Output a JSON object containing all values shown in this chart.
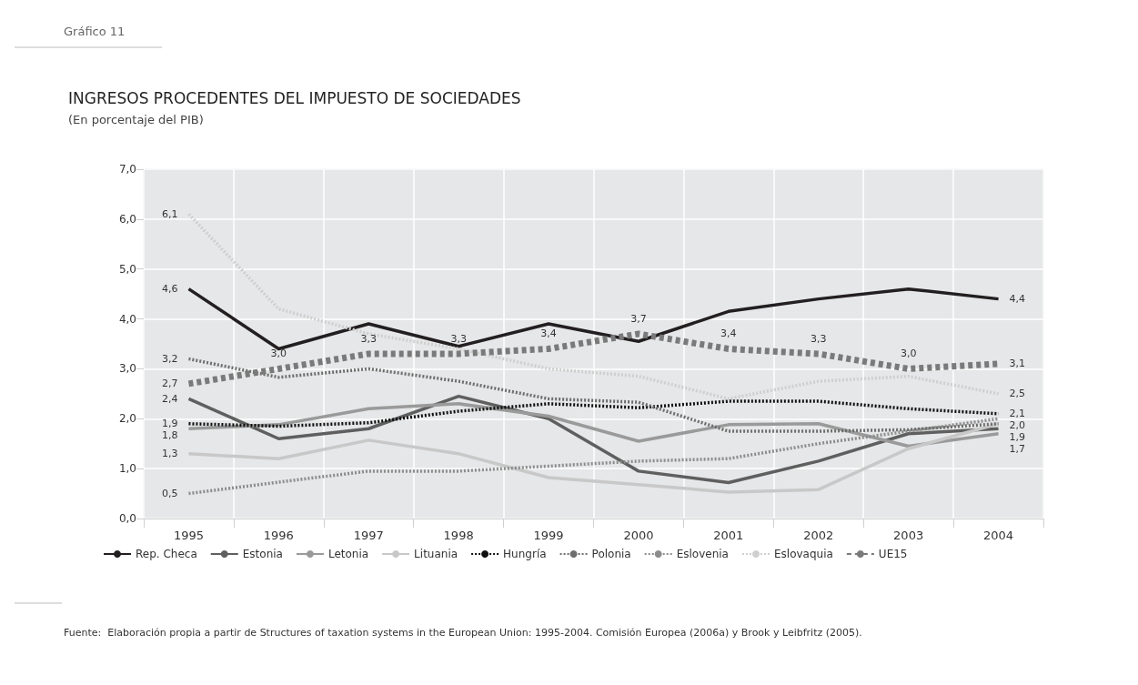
{
  "chart_data": {
    "type": "line",
    "title": "INGRESOS PROCEDENTES DEL IMPUESTO DE SOCIEDADES",
    "subtitle": "(En porcentaje del PIB)",
    "annotations": [
      "Gráfico 11",
      "Fuente:  Elaboración propia a partir de Structures of taxation systems in the European Union: 1995-2004. Comisión Europea (2006a) y Brook y Leibfritz (2005)."
    ],
    "categories": [
      "1995",
      "1996",
      "1997",
      "1998",
      "1999",
      "2000",
      "2001",
      "2002",
      "2003",
      "2004"
    ],
    "ylim": [
      0,
      7
    ],
    "yticks": [
      {
        "value": 0,
        "label": "0,0"
      },
      {
        "value": 1,
        "label": "1,0"
      },
      {
        "value": 2,
        "label": "2,0"
      },
      {
        "value": 3,
        "label": "3,0"
      },
      {
        "value": 4,
        "label": "4,0"
      },
      {
        "value": 5,
        "label": "5,0"
      },
      {
        "value": 6,
        "label": "6,0"
      },
      {
        "value": 7,
        "label": "7,0"
      }
    ],
    "grid": true,
    "legend": "bottom",
    "marker": "none",
    "series": [
      {
        "name": "Rep. Checa",
        "color": "#231f20",
        "line_style": "solid",
        "values": [
          4.6,
          3.4,
          3.9,
          3.45,
          3.9,
          3.55,
          4.15,
          4.4,
          4.6,
          4.4
        ],
        "value_labels": [
          "4,6",
          null,
          null,
          null,
          null,
          null,
          null,
          null,
          null,
          "4,4"
        ]
      },
      {
        "name": "Estonia",
        "color": "#5f5f5f",
        "line_style": "solid",
        "values": [
          2.4,
          1.6,
          1.8,
          2.45,
          2.0,
          0.95,
          0.72,
          1.15,
          1.7,
          1.8
        ],
        "value_labels": [
          "2,4",
          null,
          null,
          null,
          null,
          null,
          null,
          null,
          null,
          null
        ]
      },
      {
        "name": "Letonia",
        "color": "#9a9a9a",
        "line_style": "solid",
        "values": [
          1.8,
          1.88,
          2.2,
          2.3,
          2.05,
          1.55,
          1.88,
          1.9,
          1.45,
          1.7
        ],
        "value_labels": [
          "1,8",
          null,
          null,
          null,
          null,
          null,
          null,
          null,
          null,
          "1,7"
        ]
      },
      {
        "name": "Lituania",
        "color": "#c8c8c8",
        "line_style": "solid",
        "values": [
          1.3,
          1.2,
          1.57,
          1.3,
          0.82,
          0.68,
          0.53,
          0.58,
          1.4,
          1.9
        ],
        "value_labels": [
          "1,3",
          null,
          null,
          null,
          null,
          null,
          null,
          null,
          null,
          null
        ]
      },
      {
        "name": "Hungría",
        "color": "#111111",
        "line_style": "dotted",
        "values": [
          1.9,
          1.85,
          1.92,
          2.15,
          2.3,
          2.22,
          2.35,
          2.35,
          2.2,
          2.1
        ],
        "value_labels": [
          "1,9",
          null,
          null,
          null,
          null,
          null,
          null,
          null,
          null,
          "2,1"
        ]
      },
      {
        "name": "Polonia",
        "color": "#6e6e6e",
        "line_style": "dotted",
        "values": [
          3.2,
          2.83,
          3.0,
          2.75,
          2.4,
          2.33,
          1.75,
          1.75,
          1.78,
          1.9
        ],
        "value_labels": [
          "3,2",
          null,
          null,
          null,
          null,
          null,
          null,
          null,
          null,
          "1,9"
        ]
      },
      {
        "name": "Eslovenia",
        "color": "#8c8c8c",
        "line_style": "dotted",
        "values": [
          0.5,
          0.73,
          0.95,
          0.95,
          1.05,
          1.15,
          1.2,
          1.5,
          1.75,
          2.0
        ],
        "value_labels": [
          "0,5",
          null,
          null,
          null,
          null,
          null,
          null,
          null,
          null,
          "2,0"
        ]
      },
      {
        "name": "Eslovaquia",
        "color": "#cfcfcf",
        "line_style": "dotted",
        "values": [
          6.1,
          4.2,
          3.7,
          3.4,
          3.0,
          2.85,
          2.4,
          2.75,
          2.85,
          2.5
        ],
        "value_labels": [
          "6,1",
          null,
          null,
          null,
          null,
          null,
          null,
          null,
          null,
          "2,5"
        ]
      },
      {
        "name": "UE15",
        "color": "#7a7a7a",
        "line_style": "dashed",
        "values": [
          2.7,
          3.0,
          3.3,
          3.3,
          3.4,
          3.7,
          3.4,
          3.3,
          3.0,
          3.1
        ],
        "value_labels": [
          "2,7",
          "3,0",
          "3,3",
          "3,3",
          "3,4",
          "3,7",
          "3,4",
          "3,3",
          "3,0",
          "3,1"
        ]
      }
    ]
  }
}
